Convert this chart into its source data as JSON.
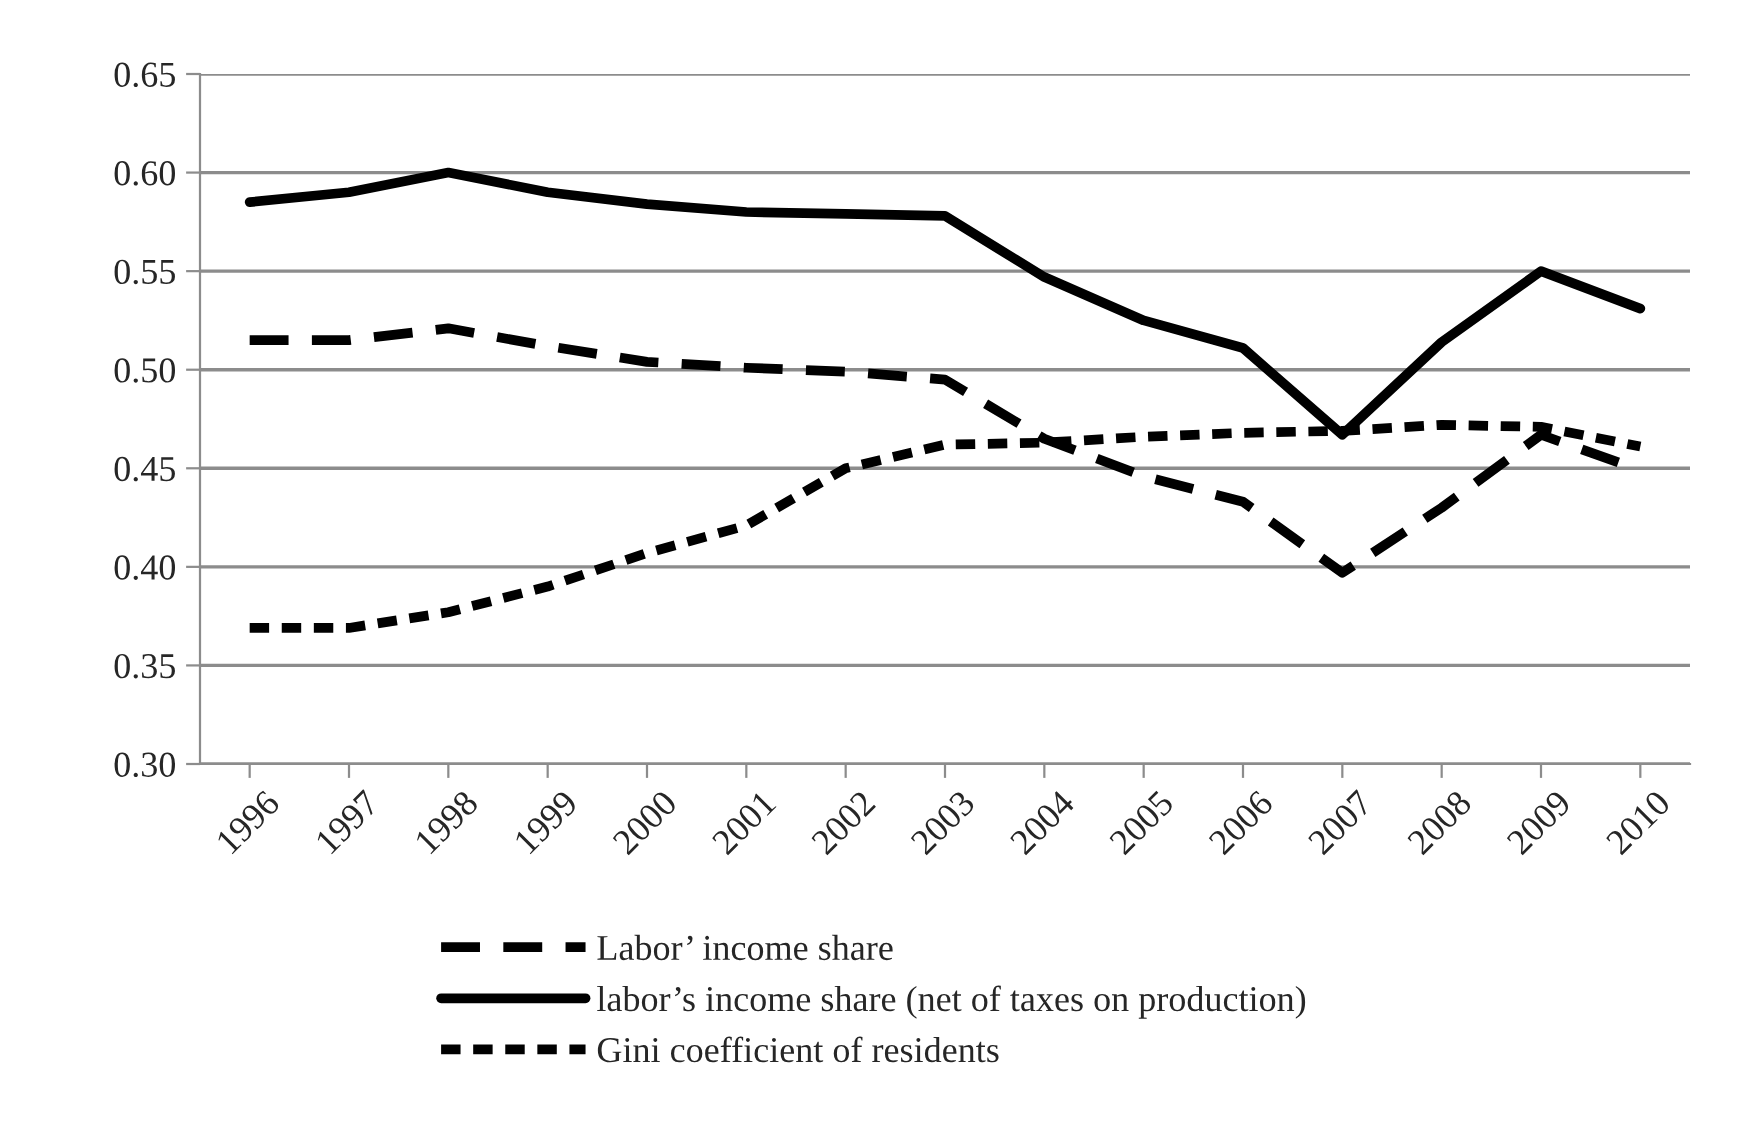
{
  "chart_data": {
    "type": "line",
    "categories": [
      "1996",
      "1997",
      "1998",
      "1999",
      "2000",
      "2001",
      "2002",
      "2003",
      "2004",
      "2005",
      "2006",
      "2007",
      "2008",
      "2009",
      "2010"
    ],
    "series": [
      {
        "name": "Labor’ income share",
        "color": "#000000",
        "line_style": "dashed",
        "values": [
          0.515,
          0.515,
          0.521,
          0.512,
          0.504,
          0.501,
          0.499,
          0.495,
          0.465,
          0.446,
          0.433,
          0.397,
          0.43,
          0.467,
          0.449
        ]
      },
      {
        "name": "labor’s income share (net of taxes on production)",
        "color": "#000000",
        "line_style": "solid",
        "values": [
          0.585,
          0.59,
          0.6,
          0.59,
          0.584,
          0.58,
          0.579,
          0.578,
          0.547,
          0.525,
          0.511,
          0.467,
          0.514,
          0.55,
          0.531
        ]
      },
      {
        "name": "Gini coefficient of residents",
        "color": "#000000",
        "line_style": "dotted",
        "values": [
          0.369,
          0.369,
          0.377,
          0.39,
          0.407,
          0.421,
          0.45,
          0.462,
          0.463,
          0.466,
          0.468,
          0.469,
          0.472,
          0.471,
          0.461
        ]
      }
    ],
    "ylim": [
      0.3,
      0.65
    ],
    "yticks": [
      {
        "value": 0.3,
        "label": "0.30"
      },
      {
        "value": 0.35,
        "label": "0.35"
      },
      {
        "value": 0.4,
        "label": "0.40"
      },
      {
        "value": 0.45,
        "label": "0.45"
      },
      {
        "value": 0.5,
        "label": "0.50"
      },
      {
        "value": 0.55,
        "label": "0.55"
      },
      {
        "value": 0.6,
        "label": "0.60"
      },
      {
        "value": 0.65,
        "label": "0.65"
      }
    ],
    "grid": "y",
    "legend": "bottom",
    "marker": "none"
  }
}
